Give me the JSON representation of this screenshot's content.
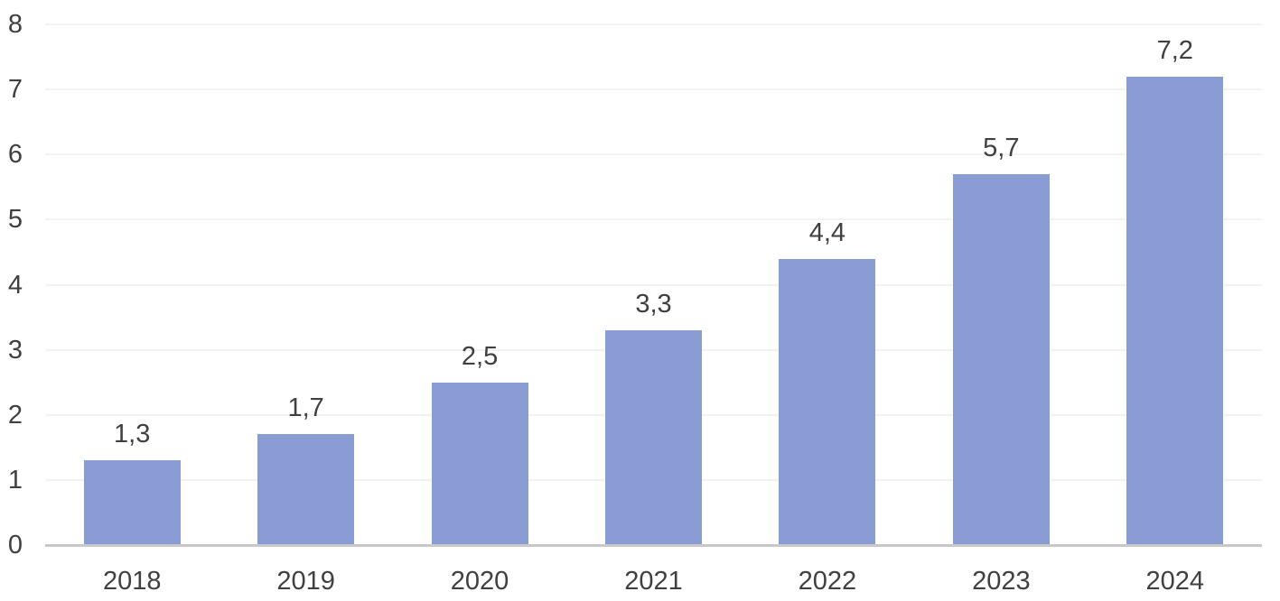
{
  "chart_data": {
    "type": "bar",
    "categories": [
      "2018",
      "2019",
      "2020",
      "2021",
      "2022",
      "2023",
      "2024"
    ],
    "values": [
      1.3,
      1.7,
      2.5,
      3.3,
      4.4,
      5.7,
      7.2
    ],
    "value_labels": [
      "1,3",
      "1,7",
      "2,5",
      "3,3",
      "4,4",
      "5,7",
      "7,2"
    ],
    "title": "",
    "xlabel": "",
    "ylabel": "",
    "ylim": [
      0,
      8
    ],
    "y_ticks": [
      0,
      1,
      2,
      3,
      4,
      5,
      6,
      7,
      8
    ],
    "grid": true,
    "legend_position": "none",
    "decimal_separator": ",",
    "colors": {
      "bar_fill": "#8A9CD4",
      "axis_line": "#C8C8C8",
      "gridline": "#F2F2F2",
      "text": "#404040"
    }
  }
}
